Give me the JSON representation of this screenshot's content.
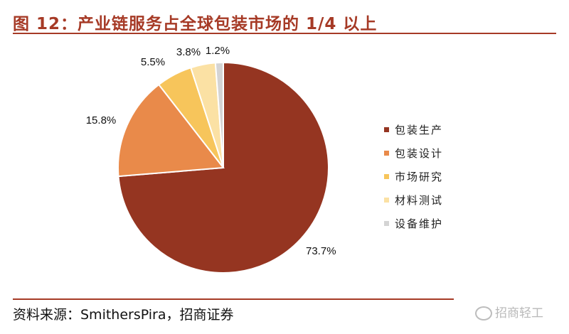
{
  "title": "图 12：产业链服务占全球包装市场的 1/4 以上",
  "source": "资料来源：SmithersPira，招商证券",
  "watermark": "招商轻工",
  "chart_data": {
    "type": "pie",
    "title": "",
    "legend_position": "right",
    "slices": [
      {
        "name": "包装生产",
        "value": 73.7,
        "label": "73.7%",
        "color": "#953521"
      },
      {
        "name": "包装设计",
        "value": 15.8,
        "label": "15.8%",
        "color": "#e98a4a"
      },
      {
        "name": "市场研究",
        "value": 5.5,
        "label": "5.5%",
        "color": "#f7c55b"
      },
      {
        "name": "材料测试",
        "value": 3.8,
        "label": "3.8%",
        "color": "#fbe1a4"
      },
      {
        "name": "设备维护",
        "value": 1.2,
        "label": "1.2%",
        "color": "#d4d4d4"
      }
    ]
  }
}
